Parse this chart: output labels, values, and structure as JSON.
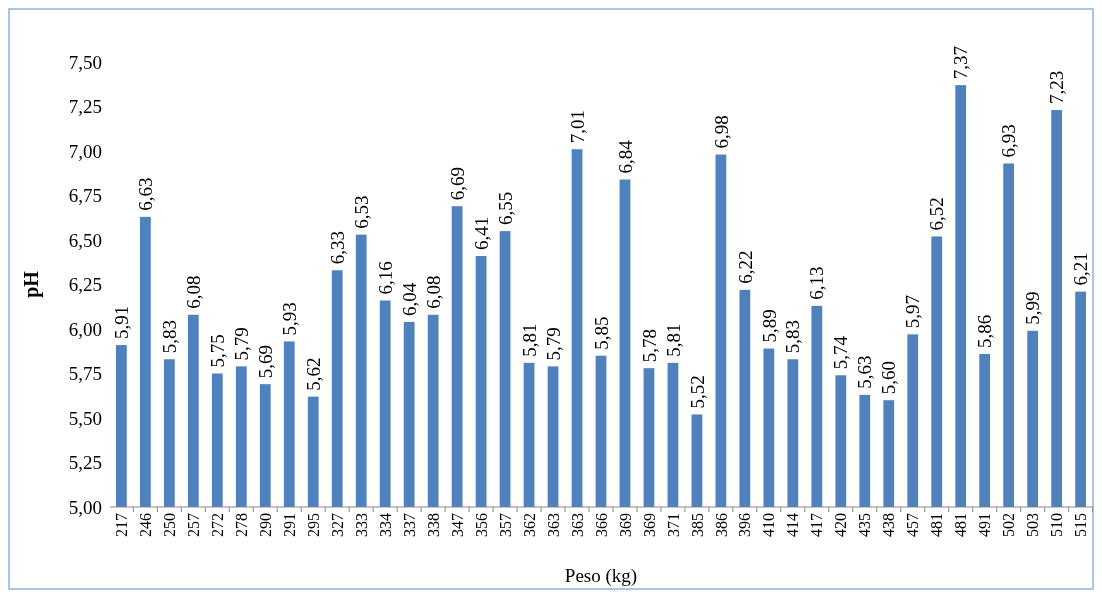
{
  "chart_data": {
    "type": "bar",
    "xlabel": "Peso (kg)",
    "ylabel": "pH",
    "color": "#4f81bd",
    "categories": [
      "217",
      "246",
      "250",
      "257",
      "272",
      "278",
      "290",
      "291",
      "295",
      "327",
      "333",
      "334",
      "337",
      "338",
      "347",
      "356",
      "357",
      "362",
      "363",
      "363",
      "366",
      "369",
      "369",
      "371",
      "385",
      "386",
      "396",
      "410",
      "414",
      "417",
      "420",
      "435",
      "438",
      "457",
      "481",
      "481",
      "491",
      "502",
      "503",
      "510",
      "515"
    ],
    "values": [
      5.91,
      6.63,
      5.83,
      6.08,
      5.75,
      5.79,
      5.69,
      5.93,
      5.62,
      6.33,
      6.53,
      6.16,
      6.04,
      6.08,
      6.69,
      6.41,
      6.55,
      5.81,
      5.79,
      7.01,
      5.85,
      6.84,
      5.78,
      5.81,
      5.52,
      6.98,
      6.22,
      5.89,
      5.83,
      6.13,
      5.74,
      5.63,
      5.6,
      5.97,
      6.52,
      7.37,
      5.86,
      6.93,
      5.99,
      7.23,
      6.21
    ],
    "value_labels": [
      "5,91",
      "6,63",
      "5,83",
      "6,08",
      "5,75",
      "5,79",
      "5,69",
      "5,93",
      "5,62",
      "6,33",
      "6,53",
      "6,16",
      "6,04",
      "6,08",
      "6,69",
      "6,41",
      "6,55",
      "5,81",
      "5,79",
      "7,01",
      "5,85",
      "6,84",
      "5,78",
      "5,81",
      "5,52",
      "6,98",
      "6,22",
      "5,89",
      "5,83",
      "6,13",
      "5,74",
      "5,63",
      "5,60",
      "5,97",
      "6,52",
      "7,37",
      "5,86",
      "6,93",
      "5,99",
      "7,23",
      "6,21"
    ],
    "ylim": [
      5,
      7.5
    ],
    "yticks": [
      {
        "value": 5,
        "label": "5,00"
      },
      {
        "value": 5.25,
        "label": "5,25"
      },
      {
        "value": 5.5,
        "label": "5,50"
      },
      {
        "value": 5.75,
        "label": "5,75"
      },
      {
        "value": 6,
        "label": "6,00"
      },
      {
        "value": 6.25,
        "label": "6,25"
      },
      {
        "value": 6.5,
        "label": "6,50"
      },
      {
        "value": 6.75,
        "label": "6,75"
      },
      {
        "value": 7,
        "label": "7,00"
      },
      {
        "value": 7.25,
        "label": "7,25"
      },
      {
        "value": 7.5,
        "label": "7,50"
      }
    ],
    "grid": false
  }
}
